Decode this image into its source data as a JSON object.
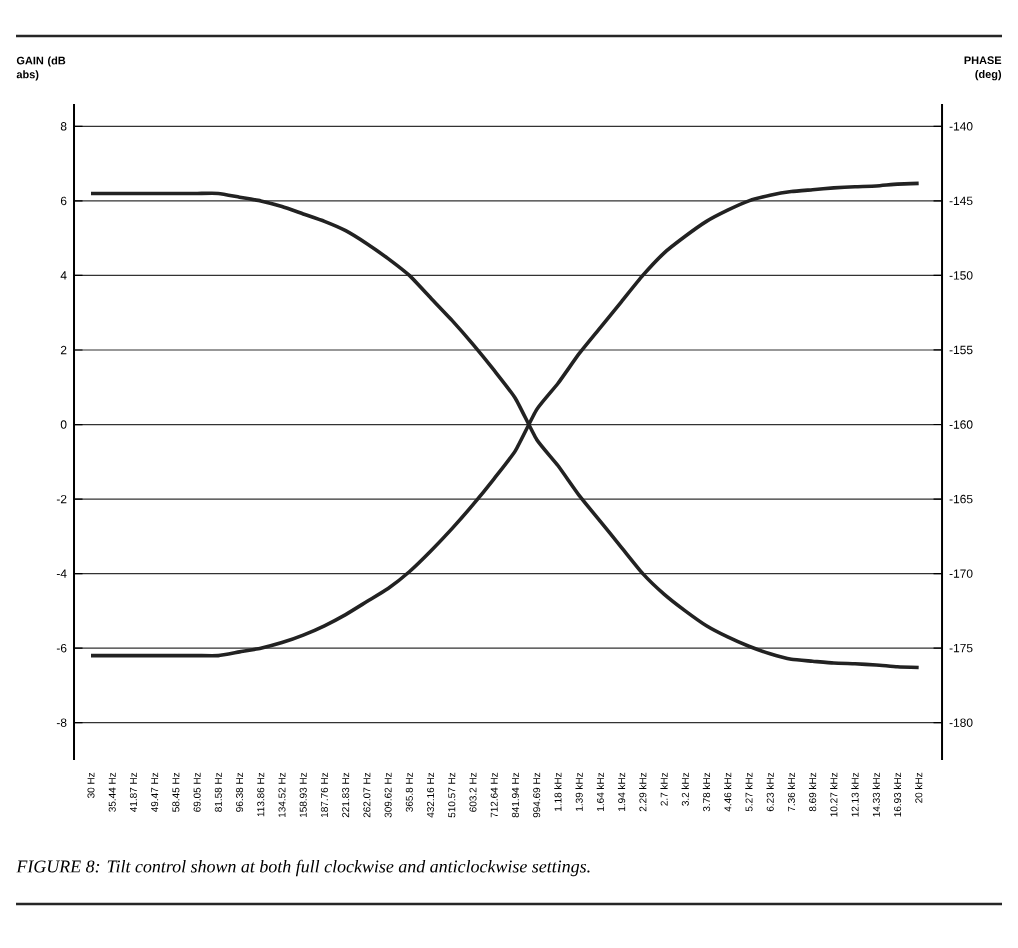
{
  "chart_data": {
    "type": "line",
    "categories": [
      "30 Hz",
      "35.44 Hz",
      "41.87 Hz",
      "49.47 Hz",
      "58.45 Hz",
      "69.05 Hz",
      "81.58 Hz",
      "96.38 Hz",
      "113.86 Hz",
      "134.52 Hz",
      "158.93 Hz",
      "187.76 Hz",
      "221.83 Hz",
      "262.07 Hz",
      "309.62 Hz",
      "365.8 Hz",
      "432.16 Hz",
      "510.57 Hz",
      "603.2 Hz",
      "712.64 Hz",
      "841.94 Hz",
      "994.69 Hz",
      "1.18 kHz",
      "1.39 kHz",
      "1.64 kHz",
      "1.94 kHz",
      "2.29 kHz",
      "2.7 kHz",
      "3.2 kHz",
      "3.78 kHz",
      "4.46 kHz",
      "5.27 kHz",
      "6.23 kHz",
      "7.36 kHz",
      "8.69 kHz",
      "10.27 kHz",
      "12.13 kHz",
      "14.33 kHz",
      "16.93 kHz",
      "20 kHz"
    ],
    "series": [
      {
        "color": "#222222",
        "values": [
          6.2,
          6.2,
          6.2,
          6.2,
          6.2,
          6.2,
          6.2,
          6.1,
          6.0,
          5.85,
          5.65,
          5.45,
          5.2,
          4.85,
          4.45,
          4.0,
          3.4,
          2.8,
          2.15,
          1.45,
          0.7,
          -0.4,
          -1.1,
          -1.9,
          -2.6,
          -3.3,
          -4.0,
          -4.55,
          -5.0,
          -5.4,
          -5.7,
          -5.95,
          -6.15,
          -6.3,
          -6.35,
          -6.4,
          -6.42,
          -6.45,
          -6.5,
          -6.52
        ]
      },
      {
        "color": "#222222",
        "values": [
          -6.2,
          -6.2,
          -6.2,
          -6.2,
          -6.2,
          -6.2,
          -6.2,
          -6.1,
          -6.0,
          -5.85,
          -5.65,
          -5.4,
          -5.1,
          -4.75,
          -4.4,
          -3.95,
          -3.4,
          -2.8,
          -2.15,
          -1.45,
          -0.7,
          0.4,
          1.1,
          1.9,
          2.6,
          3.3,
          4.0,
          4.6,
          5.05,
          5.45,
          5.75,
          6.0,
          6.15,
          6.25,
          6.3,
          6.35,
          6.38,
          6.4,
          6.45,
          6.47
        ]
      }
    ],
    "ylabel": "GAIN (dB abs)",
    "y2label": "PHASE (deg)",
    "ylim": [
      -9,
      8.6
    ],
    "yticks": [
      -8,
      -6,
      -4,
      -2,
      0,
      2,
      4,
      6,
      8
    ],
    "y2lim": [
      -182.5,
      -138.5
    ],
    "y2ticks": [
      -180,
      -175,
      -170,
      -165,
      -160,
      -155,
      -150,
      -145,
      -140
    ],
    "grid": "y",
    "line_style": "solid",
    "annotations": [
      "FIGURE 8: Tilt control shown at both full clockwise and anticlockwise settings."
    ]
  }
}
